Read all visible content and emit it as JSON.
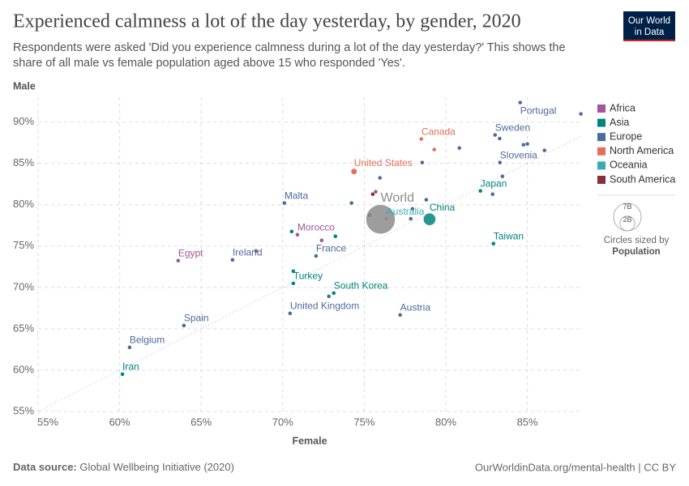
{
  "chart_data": {
    "type": "scatter",
    "title": "Experienced calmness a lot of the day yesterday, by gender, 2020",
    "subtitle": [
      "Respondents were asked 'Did you experience calmness during a lot of the day yesterday?' This shows the",
      "share of all male vs female population aged above 15 who responded 'Yes'."
    ],
    "logo": [
      "Our World",
      "in Data"
    ],
    "x_label": "Female",
    "y_label": "Male",
    "source_label": "Data source:",
    "source": "Global Wellbeing Initiative (2020)",
    "footer_right": "OurWorldinData.org/mental-health | CC BY",
    "xlim": [
      55,
      88.3
    ],
    "ylim": [
      55,
      93
    ],
    "xticks": [
      {
        "value": 55,
        "label": "55%"
      },
      {
        "value": 60,
        "label": "60%"
      },
      {
        "value": 65,
        "label": "65%"
      },
      {
        "value": 70,
        "label": "70%"
      },
      {
        "value": 75,
        "label": "75%"
      },
      {
        "value": 80,
        "label": "80%"
      },
      {
        "value": 85,
        "label": "85%"
      }
    ],
    "yticks": [
      {
        "value": 55,
        "label": "55%"
      },
      {
        "value": 60,
        "label": "60%"
      },
      {
        "value": 65,
        "label": "65%"
      },
      {
        "value": 70,
        "label": "70%"
      },
      {
        "value": 75,
        "label": "75%"
      },
      {
        "value": 80,
        "label": "80%"
      },
      {
        "value": 85,
        "label": "85%"
      },
      {
        "value": 90,
        "label": "90%"
      }
    ],
    "grid": true,
    "world": {
      "label": "World",
      "color": "#8c8c8c",
      "x": 76.0,
      "y": 78.24,
      "size": 7800000000
    },
    "series": [
      {
        "name": "Africa",
        "color": "#a2559c",
        "x": [
          63.59,
          70.9,
          68.36,
          72.39,
          75.7
        ],
        "y": [
          73.24,
          76.37,
          74.41,
          75.69,
          81.57
        ],
        "size": [
          100000000,
          36000000,
          20000000,
          28000000,
          18000000
        ],
        "labels": [
          "Egypt",
          "Morocco",
          null,
          null,
          null
        ]
      },
      {
        "name": "Asia",
        "color": "#00847e",
        "x": [
          82.12,
          79.0,
          82.92,
          70.65,
          70.65,
          73.13,
          60.17,
          70.55,
          73.23
        ],
        "y": [
          81.67,
          78.24,
          75.3,
          70.49,
          71.96,
          69.31,
          59.51,
          76.76,
          76.18
        ],
        "size": [
          126000000,
          1400000000,
          24000000,
          84000000,
          20000000,
          52000000,
          84000000,
          17000000,
          32000000
        ],
        "labels": [
          "Japan",
          "China",
          "Taiwan",
          "Turkey",
          null,
          "South Korea",
          "Iran",
          null,
          null
        ]
      },
      {
        "name": "Europe",
        "color": "#4c6a9c",
        "x": [
          84.56,
          88.28,
          83.02,
          83.3,
          80.83,
          84.76,
          85.0,
          86.05,
          83.32,
          83.47,
          82.87,
          75.96,
          78.55,
          74.22,
          70.1,
          78.8,
          77.95,
          77.85,
          66.92,
          72.04,
          70.45,
          72.83,
          77.2,
          63.94,
          60.61
        ],
        "y": [
          92.35,
          90.98,
          88.43,
          88.0,
          86.86,
          87.25,
          87.35,
          86.57,
          85.1,
          83.43,
          81.27,
          83.24,
          85.1,
          80.2,
          80.2,
          80.6,
          79.5,
          78.3,
          73.33,
          73.8,
          66.86,
          68.92,
          66.67,
          65.39,
          62.75
        ],
        "size": [
          10300000,
          5500000,
          10400000,
          5400000,
          5800000,
          17000000,
          5400000,
          8600000,
          2100000,
          11000000,
          4900000,
          11000000,
          83000000,
          4000000,
          500000,
          10300000,
          66000000,
          2800000,
          5000000,
          67000000,
          67000000,
          38000000,
          8900000,
          47000000,
          11500000
        ],
        "labels": [
          "Portugal",
          null,
          "Sweden",
          null,
          null,
          null,
          null,
          null,
          "Slovenia",
          null,
          null,
          null,
          null,
          null,
          "Malta",
          null,
          null,
          null,
          "Ireland",
          "France",
          "United Kingdom",
          null,
          "Austria",
          "Spain",
          "Belgium"
        ]
      },
      {
        "name": "North America",
        "color": "#e56e5a",
        "x": [
          74.37,
          78.5,
          79.29
        ],
        "y": [
          84.02,
          87.94,
          86.67
        ],
        "size": [
          330000000,
          38000000,
          10000000
        ],
        "labels": [
          "United States",
          "Canada",
          null
        ]
      },
      {
        "name": "Oceania",
        "color": "#38aaba",
        "x": [
          76.36
        ],
        "y": [
          78.3
        ],
        "size": [
          25000000
        ],
        "labels": [
          "Australia"
        ]
      },
      {
        "name": "South America",
        "color": "#883039",
        "x": [
          75.32,
          75.52
        ],
        "y": [
          78.73,
          81.27
        ],
        "size": [
          45000000,
          19000000
        ],
        "labels": [
          null,
          null
        ]
      }
    ],
    "size_legend": {
      "values": [
        7000000000,
        2000000000
      ],
      "labels": [
        "7B",
        "2B"
      ],
      "title": "Circles sized by",
      "variable": "Population"
    }
  }
}
